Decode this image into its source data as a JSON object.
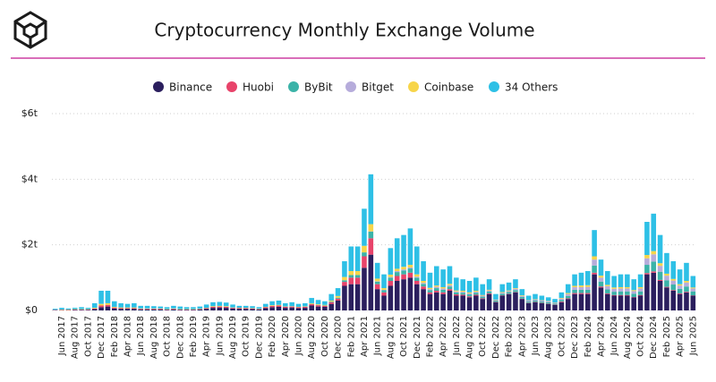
{
  "chart_data": {
    "type": "stacked_bar",
    "title": "Cryptocurrency Monthly Exchange Volume",
    "categories": [
      null,
      "Jun 2017",
      null,
      "Aug 2017",
      null,
      "Oct 2017",
      null,
      "Dec 2017",
      null,
      "Feb 2018",
      null,
      "Apr 2018",
      null,
      "Jun 2018",
      null,
      "Aug 2018",
      null,
      "Oct 2018",
      null,
      "Dec 2018",
      null,
      "Feb 2019",
      null,
      "Apr 2019",
      null,
      "Jun 2019",
      null,
      "Aug 2019",
      null,
      "Oct 2019",
      null,
      "Dec 2019",
      null,
      "Feb 2020",
      null,
      "Apr 2020",
      null,
      "Jun 2020",
      null,
      "Aug 2020",
      null,
      "Oct 2020",
      null,
      "Dec 2020",
      null,
      "Feb 2021",
      null,
      "Apr 2021",
      null,
      "Jun 2021",
      null,
      "Aug 2021",
      null,
      "Oct 2021",
      null,
      "Dec 2021",
      null,
      "Feb 2022",
      null,
      "Apr 2022",
      null,
      "Jun 2022",
      null,
      "Aug 2022",
      null,
      "Oct 2022",
      null,
      "Dec 2022",
      null,
      "Feb 2023",
      null,
      "Apr 2023",
      null,
      "Jun 2023",
      null,
      "Aug 2023",
      null,
      "Oct 2023",
      null,
      "Dec 2023",
      null,
      "Feb 2024",
      null,
      "Apr 2024",
      null,
      "Jun 2024",
      null,
      "Aug 2024",
      null,
      "Oct 2024",
      null,
      "Dec 2024",
      null,
      "Feb 2025",
      null,
      "Apr 2025",
      null,
      "Jun 2025"
    ],
    "series": [
      {
        "name": "Binance",
        "color": "#2b1f5e",
        "values": [
          0.01,
          0.01,
          0.01,
          0.02,
          0.02,
          0.02,
          0.04,
          0.1,
          0.12,
          0.06,
          0.05,
          0.05,
          0.05,
          0.03,
          0.03,
          0.03,
          0.03,
          0.02,
          0.03,
          0.02,
          0.02,
          0.02,
          0.03,
          0.05,
          0.08,
          0.09,
          0.08,
          0.06,
          0.05,
          0.05,
          0.04,
          0.03,
          0.07,
          0.1,
          0.11,
          0.08,
          0.09,
          0.07,
          0.08,
          0.15,
          0.12,
          0.11,
          0.2,
          0.3,
          0.75,
          0.8,
          0.8,
          1.3,
          1.7,
          0.65,
          0.45,
          0.75,
          0.9,
          0.95,
          1.0,
          0.8,
          0.65,
          0.5,
          0.55,
          0.5,
          0.6,
          0.45,
          0.45,
          0.4,
          0.45,
          0.35,
          0.5,
          0.25,
          0.45,
          0.5,
          0.55,
          0.35,
          0.22,
          0.25,
          0.22,
          0.2,
          0.17,
          0.25,
          0.35,
          0.5,
          0.5,
          0.5,
          1.1,
          0.7,
          0.5,
          0.45,
          0.45,
          0.45,
          0.4,
          0.45,
          1.1,
          1.15,
          0.9,
          0.7,
          0.6,
          0.5,
          0.55,
          0.45
        ]
      },
      {
        "name": "Huobi",
        "color": "#e8436a",
        "values": [
          0.01,
          0.01,
          0.01,
          0.01,
          0.01,
          0.01,
          0.02,
          0.05,
          0.05,
          0.03,
          0.02,
          0.02,
          0.02,
          0.02,
          0.02,
          0.02,
          0.02,
          0.01,
          0.02,
          0.01,
          0.01,
          0.01,
          0.01,
          0.02,
          0.03,
          0.03,
          0.03,
          0.02,
          0.02,
          0.02,
          0.02,
          0.01,
          0.03,
          0.04,
          0.04,
          0.03,
          0.03,
          0.03,
          0.03,
          0.04,
          0.04,
          0.03,
          0.05,
          0.06,
          0.12,
          0.2,
          0.2,
          0.35,
          0.5,
          0.15,
          0.1,
          0.15,
          0.15,
          0.15,
          0.15,
          0.1,
          0.08,
          0.05,
          0.05,
          0.05,
          0.05,
          0.04,
          0.03,
          0.03,
          0.03,
          0.02,
          0.02,
          0.01,
          0.01,
          0.01,
          0.01,
          0.01,
          0.01,
          0.01,
          0.01,
          0.01,
          0.01,
          0.02,
          0.02,
          0.03,
          0.03,
          0.03,
          0.05,
          0.03,
          0.02,
          0.02,
          0.02,
          0.02,
          0.01,
          0.02,
          0.04,
          0.04,
          0.03,
          0.02,
          0.02,
          0.02,
          0.02,
          0.01
        ]
      },
      {
        "name": "ByBit",
        "color": "#3bb3a8",
        "values": [
          0,
          0,
          0,
          0,
          0,
          0,
          0,
          0,
          0,
          0,
          0,
          0,
          0,
          0,
          0,
          0,
          0,
          0,
          0,
          0,
          0,
          0,
          0,
          0,
          0,
          0,
          0,
          0,
          0,
          0,
          0,
          0,
          0,
          0,
          0,
          0,
          0,
          0,
          0.01,
          0.01,
          0.01,
          0.01,
          0.02,
          0.03,
          0.05,
          0.08,
          0.08,
          0.12,
          0.2,
          0.08,
          0.07,
          0.1,
          0.12,
          0.12,
          0.13,
          0.1,
          0.08,
          0.07,
          0.08,
          0.08,
          0.08,
          0.06,
          0.06,
          0.06,
          0.06,
          0.05,
          0.06,
          0.04,
          0.05,
          0.05,
          0.06,
          0.05,
          0.04,
          0.04,
          0.04,
          0.04,
          0.03,
          0.05,
          0.07,
          0.1,
          0.1,
          0.1,
          0.22,
          0.15,
          0.12,
          0.1,
          0.11,
          0.11,
          0.1,
          0.11,
          0.25,
          0.3,
          0.25,
          0.2,
          0.17,
          0.14,
          0.16,
          0.12
        ]
      },
      {
        "name": "Bitget",
        "color": "#b6acdb",
        "values": [
          0,
          0,
          0,
          0,
          0,
          0,
          0,
          0,
          0,
          0,
          0,
          0,
          0,
          0,
          0,
          0,
          0,
          0,
          0,
          0,
          0,
          0,
          0,
          0,
          0,
          0,
          0,
          0,
          0,
          0,
          0,
          0,
          0,
          0,
          0,
          0,
          0,
          0,
          0,
          0,
          0,
          0,
          0,
          0,
          0,
          0,
          0,
          0,
          0.01,
          0.01,
          0.01,
          0.02,
          0.03,
          0.03,
          0.03,
          0.03,
          0.03,
          0.03,
          0.04,
          0.04,
          0.04,
          0.03,
          0.03,
          0.03,
          0.03,
          0.03,
          0.03,
          0.02,
          0.03,
          0.03,
          0.04,
          0.03,
          0.03,
          0.03,
          0.03,
          0.03,
          0.02,
          0.04,
          0.06,
          0.08,
          0.08,
          0.09,
          0.18,
          0.12,
          0.1,
          0.09,
          0.09,
          0.09,
          0.08,
          0.09,
          0.2,
          0.22,
          0.18,
          0.14,
          0.12,
          0.1,
          0.12,
          0.09
        ]
      },
      {
        "name": "Coinbase",
        "color": "#f7d54a",
        "values": [
          0,
          0.01,
          0.01,
          0.01,
          0.01,
          0.01,
          0.02,
          0.05,
          0.05,
          0.02,
          0.02,
          0.02,
          0.02,
          0.01,
          0.01,
          0.01,
          0.01,
          0.01,
          0.01,
          0.01,
          0.01,
          0.01,
          0.01,
          0.01,
          0.02,
          0.02,
          0.02,
          0.01,
          0.01,
          0.01,
          0.01,
          0.01,
          0.01,
          0.02,
          0.02,
          0.01,
          0.01,
          0.01,
          0.01,
          0.02,
          0.02,
          0.02,
          0.03,
          0.05,
          0.1,
          0.12,
          0.12,
          0.2,
          0.22,
          0.08,
          0.05,
          0.07,
          0.07,
          0.08,
          0.08,
          0.07,
          0.06,
          0.04,
          0.04,
          0.04,
          0.04,
          0.03,
          0.03,
          0.03,
          0.03,
          0.02,
          0.02,
          0.01,
          0.02,
          0.02,
          0.02,
          0.02,
          0.01,
          0.01,
          0.01,
          0.01,
          0.01,
          0.02,
          0.03,
          0.04,
          0.05,
          0.05,
          0.1,
          0.06,
          0.04,
          0.04,
          0.04,
          0.04,
          0.03,
          0.04,
          0.1,
          0.1,
          0.08,
          0.06,
          0.05,
          0.04,
          0.05,
          0.03
        ]
      },
      {
        "name": "34 Others",
        "color": "#2ec0e6",
        "values": [
          0.03,
          0.05,
          0.03,
          0.04,
          0.06,
          0.04,
          0.14,
          0.4,
          0.38,
          0.17,
          0.13,
          0.11,
          0.13,
          0.08,
          0.08,
          0.07,
          0.06,
          0.06,
          0.08,
          0.08,
          0.06,
          0.06,
          0.07,
          0.1,
          0.12,
          0.12,
          0.11,
          0.09,
          0.06,
          0.06,
          0.06,
          0.05,
          0.09,
          0.12,
          0.13,
          0.1,
          0.12,
          0.09,
          0.09,
          0.16,
          0.13,
          0.11,
          0.2,
          0.24,
          0.48,
          0.75,
          0.75,
          1.13,
          1.52,
          0.48,
          0.42,
          0.81,
          0.93,
          0.97,
          1.11,
          0.85,
          0.6,
          0.46,
          0.59,
          0.54,
          0.54,
          0.39,
          0.35,
          0.35,
          0.4,
          0.33,
          0.32,
          0.17,
          0.24,
          0.24,
          0.27,
          0.19,
          0.14,
          0.16,
          0.14,
          0.11,
          0.11,
          0.17,
          0.27,
          0.35,
          0.39,
          0.43,
          0.8,
          0.49,
          0.42,
          0.35,
          0.39,
          0.39,
          0.33,
          0.39,
          1.01,
          1.14,
          0.86,
          0.63,
          0.54,
          0.45,
          0.55,
          0.35
        ]
      }
    ],
    "ylim": [
      0,
      6
    ],
    "yticks": [
      {
        "value": 0,
        "label": "$0"
      },
      {
        "value": 2,
        "label": "$2t"
      },
      {
        "value": 4,
        "label": "$4t"
      },
      {
        "value": 6,
        "label": "$6t"
      }
    ],
    "grid": true
  }
}
